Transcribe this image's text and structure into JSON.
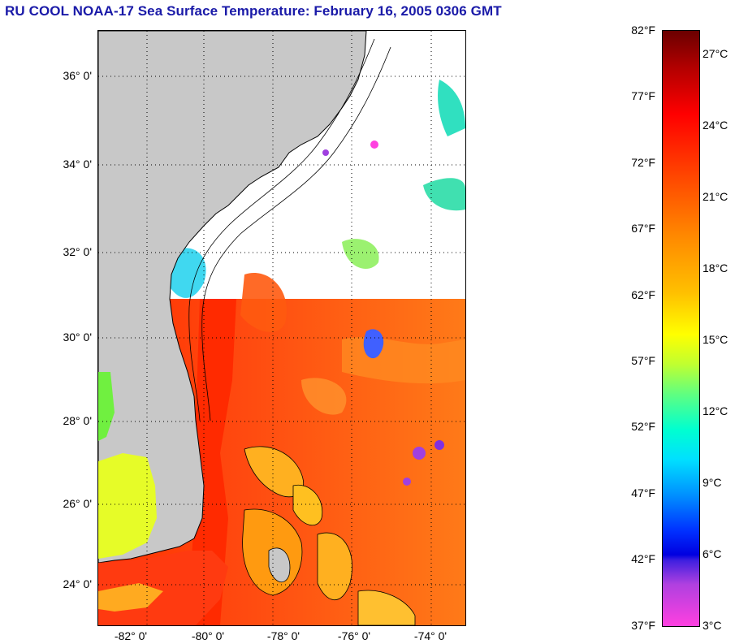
{
  "title": "RU COOL  NOAA-17  Sea Surface Temperature:  February 16, 2005 0306 GMT",
  "latitude_labels": [
    "36° 0'",
    "34° 0'",
    "32° 0'",
    "30° 0'",
    "28° 0'",
    "26° 0'",
    "24° 0'"
  ],
  "longitude_labels": [
    "-82° 0'",
    "-80° 0'",
    "-78° 0'",
    "-76° 0'",
    "-74° 0'"
  ],
  "colorbar": {
    "fahrenheit_labels": [
      "82°F",
      "77°F",
      "72°F",
      "67°F",
      "62°F",
      "57°F",
      "52°F",
      "47°F",
      "42°F",
      "37°F"
    ],
    "celsius_labels": [
      "27°C",
      "24°C",
      "21°C",
      "18°C",
      "15°C",
      "12°C",
      "9°C",
      "6°C",
      "3°C"
    ]
  },
  "colors": {
    "title": "#1a1aa8",
    "land": "#c8c8c8",
    "cloud": "#ffffff",
    "gulf_stream": "#ff3a10",
    "warm_water": "#ff6a10"
  }
}
